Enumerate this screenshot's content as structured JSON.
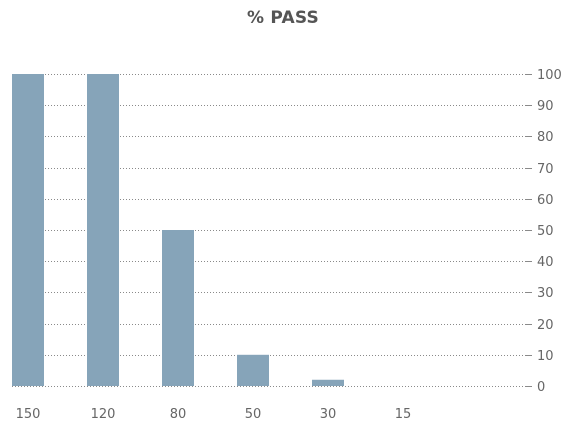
{
  "chart_data": {
    "type": "bar",
    "title": "% PASS",
    "categories": [
      "150",
      "120",
      "80",
      "50",
      "30",
      "15"
    ],
    "values": [
      100,
      100,
      50,
      10,
      2,
      0
    ],
    "ylim": [
      0,
      100
    ],
    "yticks": [
      0,
      10,
      20,
      30,
      40,
      50,
      60,
      70,
      80,
      90,
      100
    ],
    "y_axis_side": "right",
    "grid": true,
    "legend": "none",
    "bar_color": "#86a4b9",
    "grid_color": "#8a8a8a",
    "text_color": "#666666"
  }
}
